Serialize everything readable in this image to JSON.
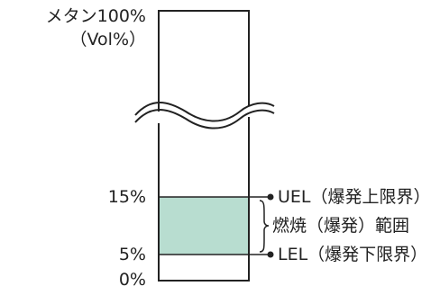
{
  "labels": {
    "top_line1": "メタン100%",
    "top_line2": "（Vol%）",
    "pct_15": "15%",
    "pct_5": "5%",
    "pct_0": "0%",
    "uel": "UEL（爆発上限界）",
    "flammable_range": "燃焼（爆発）範囲",
    "lel": "LEL（爆発下限界）"
  },
  "colors": {
    "range_fill": "#b8ddd0",
    "stroke": "#222222",
    "background": "#ffffff"
  }
}
